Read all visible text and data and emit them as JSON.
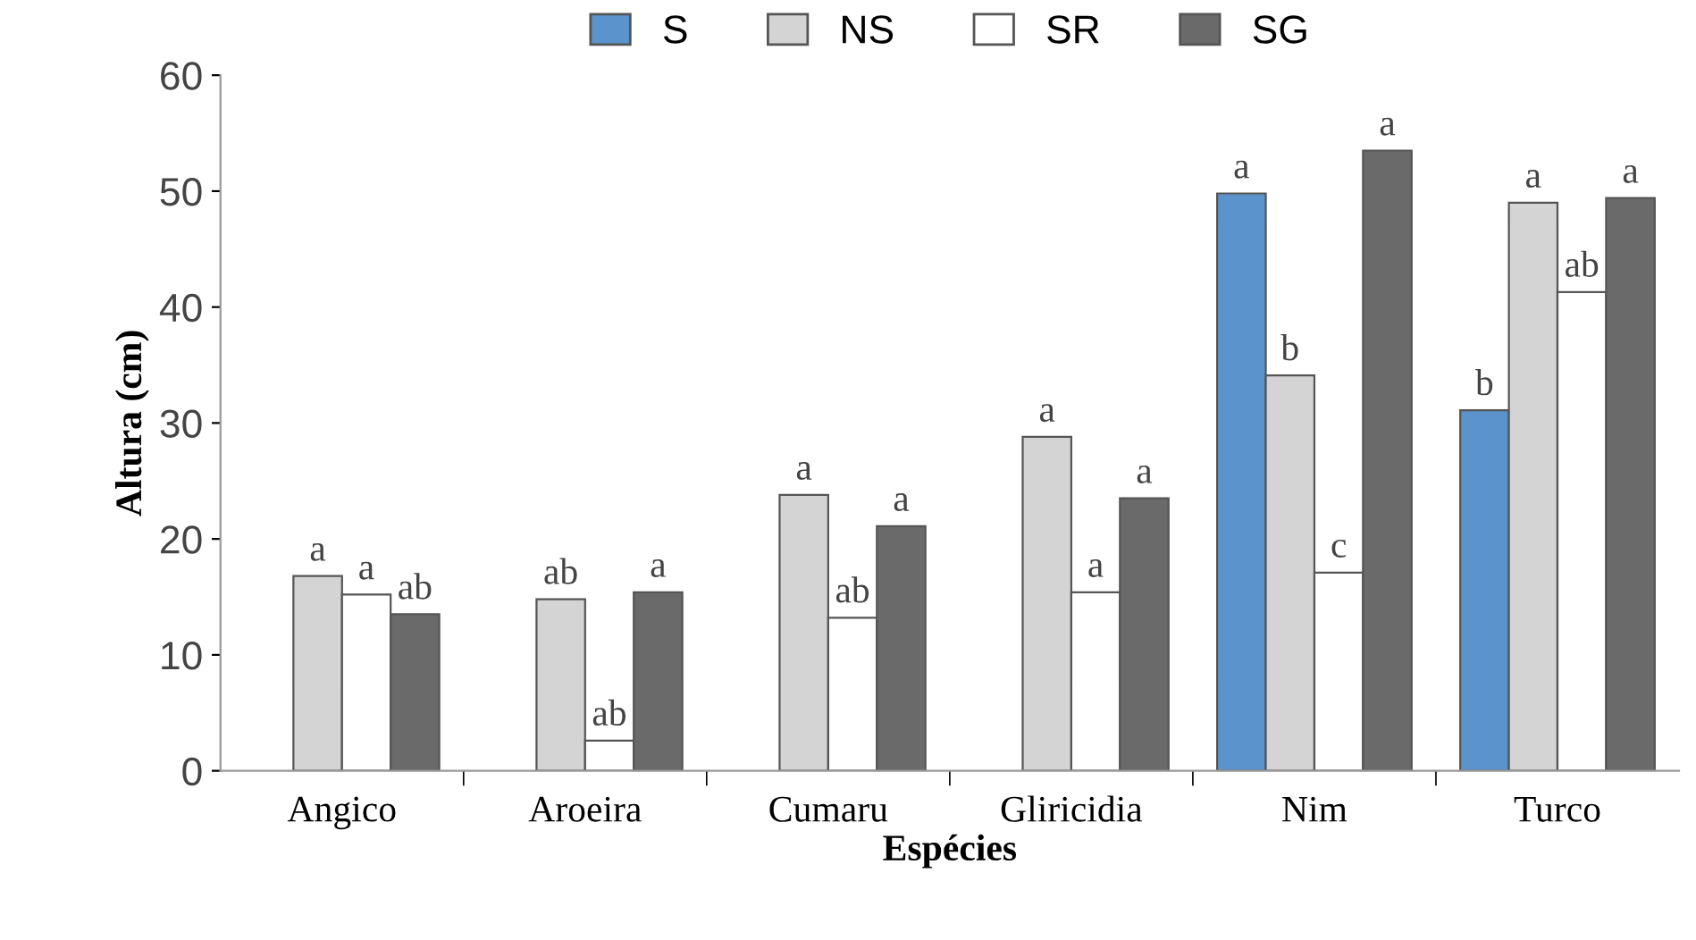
{
  "chart_data": {
    "type": "bar",
    "xlabel": "Espécies",
    "ylabel": "Altura (cm)",
    "categories": [
      "Angico",
      "Aroeira",
      "Cumaru",
      "Gliricidia",
      "Nim",
      "Turco"
    ],
    "series": [
      {
        "name": "S",
        "color": "#5b93cc",
        "values": [
          null,
          null,
          null,
          null,
          49.8,
          31.1
        ],
        "value_labels": [
          null,
          null,
          null,
          null,
          "a",
          "b"
        ]
      },
      {
        "name": "NS",
        "color": "#d4d4d4",
        "values": [
          16.8,
          14.8,
          23.8,
          28.8,
          34.1,
          49.0
        ],
        "value_labels": [
          "a",
          "ab",
          "a",
          "a",
          "b",
          "a"
        ]
      },
      {
        "name": "SR",
        "color": "#ffffff",
        "values": [
          15.2,
          2.6,
          13.2,
          15.4,
          17.1,
          41.3
        ],
        "value_labels": [
          "a",
          "ab",
          "ab",
          "a",
          "c",
          "ab"
        ]
      },
      {
        "name": "SG",
        "color": "#6a6a6a",
        "values": [
          13.5,
          15.4,
          21.1,
          23.5,
          53.5,
          49.4
        ],
        "value_labels": [
          "ab",
          "a",
          "a",
          "a",
          "a",
          "a"
        ]
      }
    ],
    "ylim": [
      0,
      60
    ],
    "yticks": [
      0,
      10,
      20,
      30,
      40,
      50,
      60
    ],
    "grid": false,
    "legend": "top"
  }
}
